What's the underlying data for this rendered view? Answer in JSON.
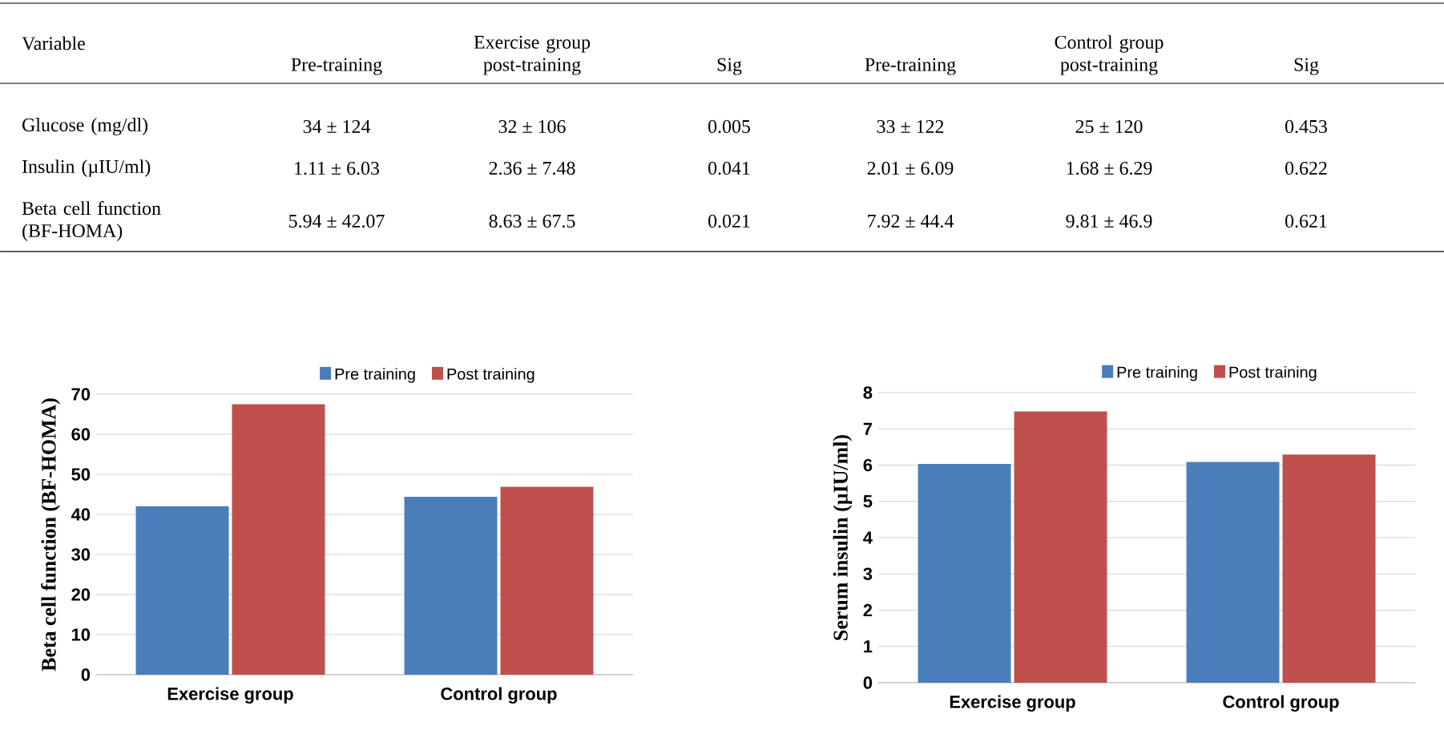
{
  "chart_data": [
    {
      "type": "other",
      "ylabel": "Variable",
      "categories": [
        "Pre-training",
        "Exercise group post-training",
        "Sig",
        "Pre-training",
        "Control group post-training",
        "Sig"
      ],
      "y_categories": [
        "Glucose (mg/dl)",
        "Insulin (µIU/ml)",
        "Beta cell function (BF-HOMA)"
      ],
      "cell_labels": [
        [
          "34 ± 124",
          "32 ± 106",
          "0.005",
          "33 ± 122",
          "25 ± 120",
          "0.453"
        ],
        [
          "1.11 ± 6.03",
          "2.36 ± 7.48",
          "0.041",
          "2.01 ± 6.09",
          "1.68 ± 6.29",
          "0.622"
        ],
        [
          "5.94 ± 42.07",
          "8.63 ± 67.5",
          "0.021",
          "7.92 ± 44.4",
          "9.81 ± 46.9",
          "0.621"
        ]
      ]
    },
    {
      "type": "bar",
      "ylabel": "Beta cell function (BF-HOMA)",
      "categories": [
        "Exercise group",
        "Control group"
      ],
      "series": [
        {
          "name": "Pre training",
          "color": "#4a7ebb",
          "values": [
            42.07,
            44.4
          ]
        },
        {
          "name": "Post training",
          "color": "#c0504d",
          "values": [
            67.5,
            46.9
          ]
        }
      ],
      "ylim": [
        0,
        70
      ],
      "yticks": [
        0,
        10,
        20,
        30,
        40,
        50,
        60,
        70
      ],
      "grid": "y",
      "legend": "top"
    },
    {
      "type": "bar",
      "ylabel": "Serum insulin (µIU/ml)",
      "categories": [
        "Exercise group",
        "Control group"
      ],
      "series": [
        {
          "name": "Pre training",
          "color": "#4a7ebb",
          "values": [
            6.03,
            6.09
          ]
        },
        {
          "name": "Post training",
          "color": "#c0504d",
          "values": [
            7.48,
            6.29
          ]
        }
      ],
      "ylim": [
        0,
        8
      ],
      "yticks": [
        0,
        1,
        2,
        3,
        4,
        5,
        6,
        7,
        8
      ],
      "grid": "y",
      "legend": "top"
    }
  ]
}
